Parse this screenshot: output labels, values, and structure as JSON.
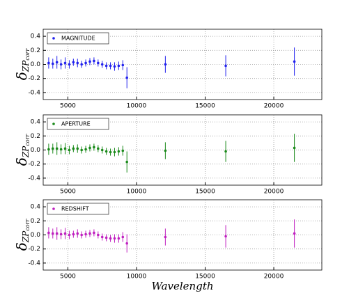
{
  "chart_data": [
    {
      "type": "scatter",
      "ylabel": [
        "δ",
        "ZP",
        "corr"
      ],
      "x": [
        3600,
        3900,
        4200,
        4500,
        4800,
        5100,
        5400,
        5700,
        6000,
        6300,
        6600,
        6900,
        7200,
        7500,
        7800,
        8100,
        8400,
        8700,
        9000,
        9300,
        12100,
        16500,
        21500
      ],
      "series": [
        {
          "name": "MAGNITUDE",
          "color": "#2222ee",
          "values": [
            0.02,
            0.01,
            0.03,
            0.0,
            0.02,
            0.0,
            0.03,
            0.02,
            0.0,
            0.02,
            0.04,
            0.05,
            0.02,
            0.0,
            -0.02,
            -0.02,
            -0.03,
            -0.02,
            -0.01,
            -0.19,
            0.0,
            -0.02,
            0.04
          ],
          "errors": [
            0.08,
            0.07,
            0.09,
            0.07,
            0.08,
            0.06,
            0.05,
            0.06,
            0.05,
            0.05,
            0.05,
            0.05,
            0.05,
            0.05,
            0.05,
            0.05,
            0.06,
            0.06,
            0.07,
            0.15,
            0.12,
            0.15,
            0.2
          ]
        }
      ],
      "xlim": [
        3200,
        23500
      ],
      "ylim": [
        -0.5,
        0.5
      ],
      "xticks": [
        5000,
        10000,
        15000,
        20000
      ],
      "yticks": [
        -0.4,
        -0.2,
        {
          "value": 0,
          "label": "0.0"
        },
        0.2,
        0.4
      ],
      "grid": true,
      "legend": "upper left"
    },
    {
      "type": "scatter",
      "ylabel": [
        "δ",
        "ZP",
        "corr"
      ],
      "x": [
        3600,
        3900,
        4200,
        4500,
        4800,
        5100,
        5400,
        5700,
        6000,
        6300,
        6600,
        6900,
        7200,
        7500,
        7800,
        8100,
        8400,
        8700,
        9000,
        9300,
        12100,
        16500,
        21500
      ],
      "series": [
        {
          "name": "APERTURE",
          "color": "#1a8a1a",
          "values": [
            0.01,
            0.02,
            0.02,
            0.01,
            0.02,
            0.0,
            0.02,
            0.02,
            0.0,
            0.01,
            0.03,
            0.04,
            0.02,
            0.0,
            -0.02,
            -0.03,
            -0.03,
            -0.02,
            -0.01,
            -0.17,
            -0.01,
            -0.02,
            0.03
          ],
          "errors": [
            0.08,
            0.07,
            0.09,
            0.07,
            0.08,
            0.06,
            0.05,
            0.06,
            0.05,
            0.05,
            0.05,
            0.05,
            0.05,
            0.05,
            0.05,
            0.05,
            0.06,
            0.06,
            0.07,
            0.15,
            0.12,
            0.15,
            0.2
          ]
        }
      ],
      "xlim": [
        3200,
        23500
      ],
      "ylim": [
        -0.5,
        0.5
      ],
      "xticks": [
        5000,
        10000,
        15000,
        20000
      ],
      "yticks": [
        -0.4,
        -0.2,
        {
          "value": 0,
          "label": "0.0"
        },
        0.2,
        0.4
      ],
      "grid": true,
      "legend": "upper left"
    },
    {
      "type": "scatter",
      "ylabel": [
        "δ",
        "ZP",
        "corr"
      ],
      "xlabel": "Wavelength",
      "x": [
        3600,
        3900,
        4200,
        4500,
        4800,
        5100,
        5400,
        5700,
        6000,
        6300,
        6600,
        6900,
        7200,
        7500,
        7800,
        8100,
        8400,
        8700,
        9000,
        9300,
        12100,
        16500,
        21500
      ],
      "series": [
        {
          "name": "REDSHIFT",
          "color": "#c020c0",
          "values": [
            0.03,
            0.02,
            0.02,
            0.01,
            0.02,
            0.0,
            0.01,
            0.02,
            0.0,
            0.01,
            0.02,
            0.03,
            0.0,
            -0.03,
            -0.04,
            -0.05,
            -0.05,
            -0.05,
            -0.03,
            -0.12,
            -0.03,
            -0.02,
            0.02
          ],
          "errors": [
            0.08,
            0.07,
            0.09,
            0.07,
            0.08,
            0.06,
            0.05,
            0.06,
            0.05,
            0.05,
            0.05,
            0.05,
            0.05,
            0.05,
            0.05,
            0.05,
            0.06,
            0.06,
            0.07,
            0.13,
            0.12,
            0.16,
            0.2
          ]
        }
      ],
      "xlim": [
        3200,
        23500
      ],
      "ylim": [
        -0.5,
        0.5
      ],
      "xticks": [
        5000,
        10000,
        15000,
        20000
      ],
      "yticks": [
        -0.4,
        -0.2,
        {
          "value": 0,
          "label": "0.0"
        },
        0.2,
        0.4
      ],
      "grid": true,
      "legend": "upper left"
    }
  ]
}
